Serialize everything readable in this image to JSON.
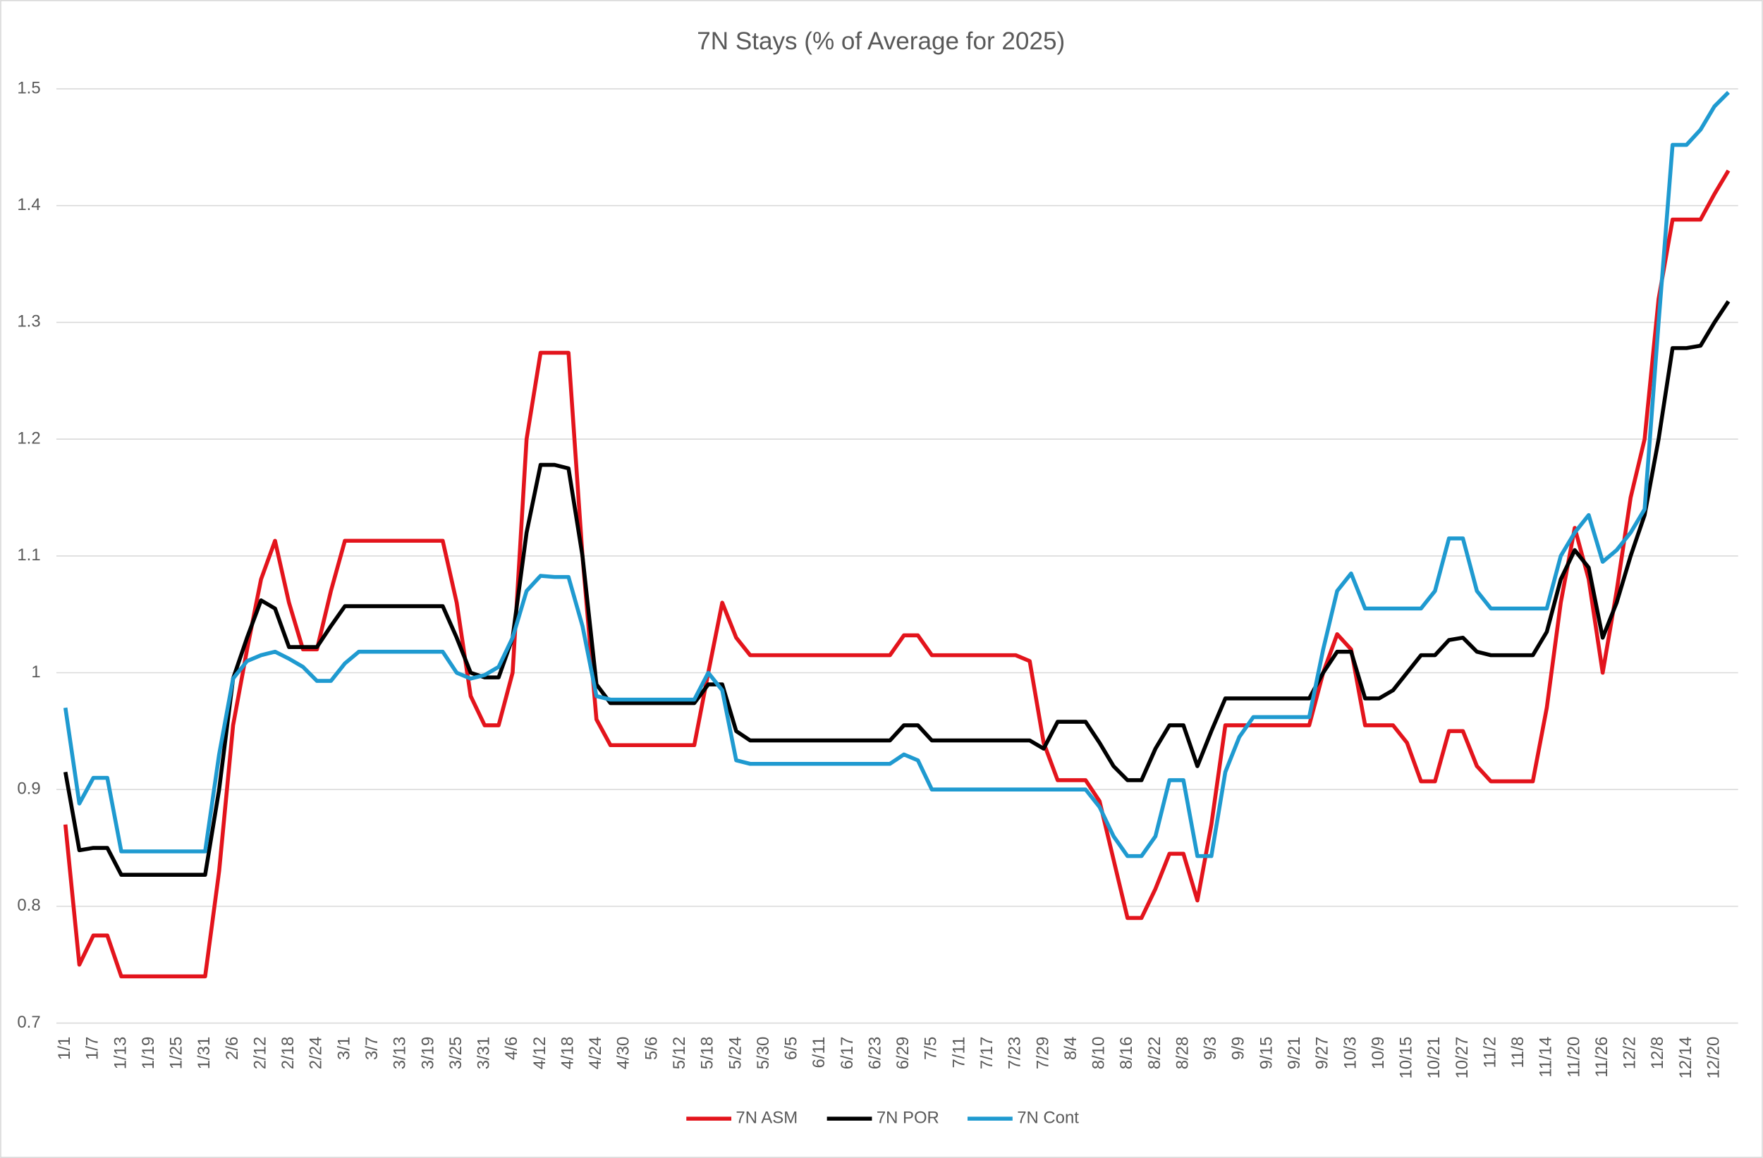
{
  "chart_data": {
    "type": "line",
    "title": "7N Stays (% of Average for 2025)",
    "categories": [
      "1/1",
      null,
      "1/7",
      null,
      "1/13",
      null,
      "1/19",
      null,
      "1/25",
      null,
      "1/31",
      null,
      "2/6",
      null,
      "2/12",
      null,
      "2/18",
      null,
      "2/24",
      null,
      "3/1",
      null,
      "3/7",
      null,
      "3/13",
      null,
      "3/19",
      null,
      "3/25",
      null,
      "3/31",
      null,
      "4/6",
      null,
      "4/12",
      null,
      "4/18",
      null,
      "4/24",
      null,
      "4/30",
      null,
      "5/6",
      null,
      "5/12",
      null,
      "5/18",
      null,
      "5/24",
      null,
      "5/30",
      null,
      "6/5",
      null,
      "6/11",
      null,
      "6/17",
      null,
      "6/23",
      null,
      "6/29",
      null,
      "7/5",
      null,
      "7/11",
      null,
      "7/17",
      null,
      "7/23",
      null,
      "7/29",
      null,
      "8/4",
      null,
      "8/10",
      null,
      "8/16",
      null,
      "8/22",
      null,
      "8/28",
      null,
      "9/3",
      null,
      "9/9",
      null,
      "9/15",
      null,
      "9/21",
      null,
      "9/27",
      null,
      "10/3",
      null,
      "10/9",
      null,
      "10/15",
      null,
      "10/21",
      null,
      "10/27",
      null,
      "11/2",
      null,
      "11/8",
      null,
      "11/14",
      null,
      "11/20",
      null,
      "11/26",
      null,
      "12/2",
      null,
      "12/8",
      null,
      "12/14",
      null,
      "12/20",
      null
    ],
    "series": [
      {
        "name": "7N ASM",
        "color": "#e3141c",
        "values": [
          0.87,
          0.75,
          0.775,
          0.775,
          0.74,
          0.74,
          0.74,
          0.74,
          0.74,
          0.74,
          0.74,
          0.83,
          0.955,
          1.02,
          1.08,
          1.113,
          1.06,
          1.02,
          1.02,
          1.07,
          1.113,
          1.113,
          1.113,
          1.113,
          1.113,
          1.113,
          1.113,
          1.113,
          1.06,
          0.98,
          0.955,
          0.955,
          1.0,
          1.2,
          1.274,
          1.274,
          1.274,
          1.1,
          0.96,
          0.938,
          0.938,
          0.938,
          0.938,
          0.938,
          0.938,
          0.938,
          1.0,
          1.06,
          1.03,
          1.015,
          1.015,
          1.015,
          1.015,
          1.015,
          1.015,
          1.015,
          1.015,
          1.015,
          1.015,
          1.015,
          1.032,
          1.032,
          1.015,
          1.015,
          1.015,
          1.015,
          1.015,
          1.015,
          1.015,
          1.01,
          0.94,
          0.908,
          0.908,
          0.908,
          0.89,
          0.84,
          0.79,
          0.79,
          0.815,
          0.845,
          0.845,
          0.805,
          0.87,
          0.955,
          0.955,
          0.955,
          0.955,
          0.955,
          0.955,
          0.955,
          1.0,
          1.033,
          1.02,
          0.955,
          0.955,
          0.955,
          0.94,
          0.907,
          0.907,
          0.95,
          0.95,
          0.92,
          0.907,
          0.907,
          0.907,
          0.907,
          0.97,
          1.06,
          1.124,
          1.08,
          1.0,
          1.07,
          1.15,
          1.2,
          1.32,
          1.388,
          1.388,
          1.388,
          1.41,
          1.43
        ]
      },
      {
        "name": "7N POR",
        "color": "#000000",
        "values": [
          0.915,
          0.848,
          0.85,
          0.85,
          0.827,
          0.827,
          0.827,
          0.827,
          0.827,
          0.827,
          0.827,
          0.9,
          0.995,
          1.03,
          1.062,
          1.055,
          1.022,
          1.022,
          1.022,
          1.04,
          1.057,
          1.057,
          1.057,
          1.057,
          1.057,
          1.057,
          1.057,
          1.057,
          1.03,
          1.0,
          0.996,
          0.996,
          1.03,
          1.12,
          1.178,
          1.178,
          1.175,
          1.1,
          0.99,
          0.974,
          0.974,
          0.974,
          0.974,
          0.974,
          0.974,
          0.974,
          0.99,
          0.99,
          0.95,
          0.942,
          0.942,
          0.942,
          0.942,
          0.942,
          0.942,
          0.942,
          0.942,
          0.942,
          0.942,
          0.942,
          0.955,
          0.955,
          0.942,
          0.942,
          0.942,
          0.942,
          0.942,
          0.942,
          0.942,
          0.942,
          0.935,
          0.958,
          0.958,
          0.958,
          0.94,
          0.92,
          0.908,
          0.908,
          0.935,
          0.955,
          0.955,
          0.92,
          0.95,
          0.978,
          0.978,
          0.978,
          0.978,
          0.978,
          0.978,
          0.978,
          1.0,
          1.018,
          1.018,
          0.978,
          0.978,
          0.985,
          1.0,
          1.015,
          1.015,
          1.028,
          1.03,
          1.018,
          1.015,
          1.015,
          1.015,
          1.015,
          1.035,
          1.08,
          1.105,
          1.09,
          1.03,
          1.06,
          1.1,
          1.135,
          1.2,
          1.278,
          1.278,
          1.28,
          1.3,
          1.318
        ]
      },
      {
        "name": "7N Cont",
        "color": "#1f9ad0",
        "values": [
          0.97,
          0.888,
          0.91,
          0.91,
          0.847,
          0.847,
          0.847,
          0.847,
          0.847,
          0.847,
          0.847,
          0.93,
          0.995,
          1.01,
          1.015,
          1.018,
          1.012,
          1.005,
          0.993,
          0.993,
          1.008,
          1.018,
          1.018,
          1.018,
          1.018,
          1.018,
          1.018,
          1.018,
          1.0,
          0.995,
          0.998,
          1.005,
          1.03,
          1.07,
          1.083,
          1.082,
          1.082,
          1.04,
          0.98,
          0.977,
          0.977,
          0.977,
          0.977,
          0.977,
          0.977,
          0.977,
          1.0,
          0.985,
          0.925,
          0.922,
          0.922,
          0.922,
          0.922,
          0.922,
          0.922,
          0.922,
          0.922,
          0.922,
          0.922,
          0.922,
          0.93,
          0.925,
          0.9,
          0.9,
          0.9,
          0.9,
          0.9,
          0.9,
          0.9,
          0.9,
          0.9,
          0.9,
          0.9,
          0.9,
          0.885,
          0.86,
          0.843,
          0.843,
          0.86,
          0.908,
          0.908,
          0.843,
          0.843,
          0.915,
          0.945,
          0.962,
          0.962,
          0.962,
          0.962,
          0.962,
          1.02,
          1.07,
          1.085,
          1.055,
          1.055,
          1.055,
          1.055,
          1.055,
          1.07,
          1.115,
          1.115,
          1.07,
          1.055,
          1.055,
          1.055,
          1.055,
          1.055,
          1.1,
          1.12,
          1.135,
          1.095,
          1.105,
          1.12,
          1.14,
          1.3,
          1.452,
          1.452,
          1.465,
          1.485,
          1.497
        ]
      }
    ],
    "ylim": [
      0.7,
      1.5
    ],
    "yticks": [
      0.7,
      0.8,
      0.9,
      1,
      1.1,
      1.2,
      1.3,
      1.4,
      1.5
    ],
    "grid": true,
    "legend": "bottom"
  }
}
